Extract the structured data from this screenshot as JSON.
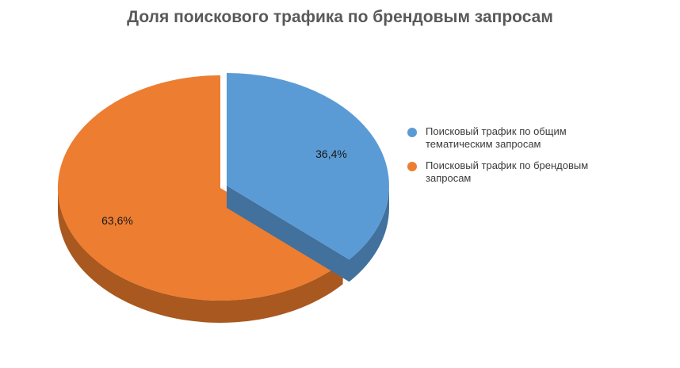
{
  "chart_data": {
    "type": "pie",
    "title": "Доля поискового трафика по брендовым запросам",
    "categories": [
      "Поисковый трафик по общим тематическим запросам",
      "Поисковый трафик по брендовым запросам"
    ],
    "values": [
      36.4,
      63.6
    ],
    "data_labels": [
      "36,4%",
      "63,6%"
    ],
    "colors": [
      "#5B9BD5",
      "#ED7D31"
    ],
    "legend": "right",
    "style": "3d-exploded"
  }
}
